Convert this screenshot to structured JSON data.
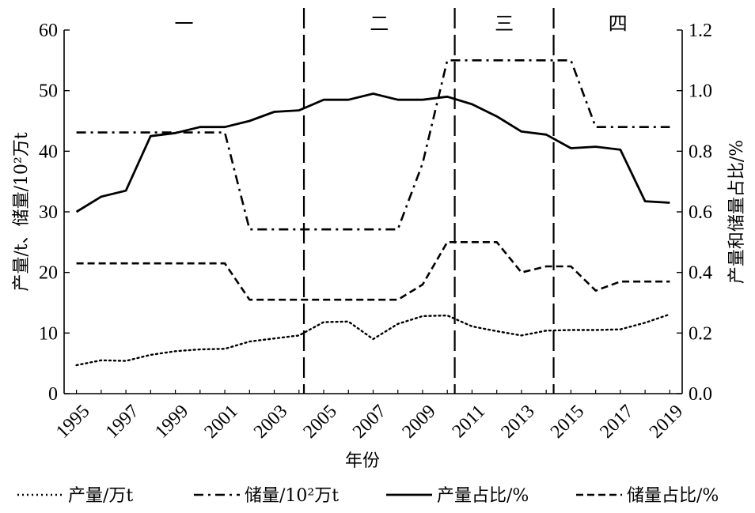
{
  "chart_data": {
    "type": "line",
    "xlabel": "年份",
    "ylabel_left": "产量/t、储量/10²万t",
    "ylabel_right": "产量和储量占比/%",
    "ylim_left": [
      0,
      60
    ],
    "ylim_right": [
      0.0,
      1.2
    ],
    "yticks_left": [
      "0",
      "10",
      "20",
      "30",
      "40",
      "50",
      "60"
    ],
    "yticks_right": [
      "0.0",
      "0.2",
      "0.4",
      "0.6",
      "0.8",
      "1.0",
      "1.2"
    ],
    "x": [
      1995,
      1996,
      1997,
      1998,
      1999,
      2000,
      2001,
      2002,
      2003,
      2004,
      2005,
      2006,
      2007,
      2008,
      2009,
      2010,
      2011,
      2012,
      2013,
      2014,
      2015,
      2016,
      2017,
      2018,
      2019
    ],
    "xtick_labels": [
      "1995",
      "1997",
      "1999",
      "2001",
      "2003",
      "2005",
      "2007",
      "2009",
      "2011",
      "2013",
      "2015",
      "2017",
      "2019"
    ],
    "xlim": [
      1994.5,
      2019.5
    ],
    "period_labels": [
      "一",
      "二",
      "三",
      "四"
    ],
    "period_bounds": [
      2004.2,
      2010.3,
      2014.3
    ],
    "series": [
      {
        "name": "产量/万t",
        "axis": "left",
        "style": "dotted",
        "values": [
          4.7,
          5.5,
          5.4,
          6.4,
          7.0,
          7.3,
          7.4,
          8.6,
          9.1,
          9.6,
          11.8,
          11.9,
          9.0,
          11.5,
          12.8,
          12.9,
          11.1,
          10.3,
          9.6,
          10.4,
          10.5,
          10.5,
          10.6,
          11.7,
          13.1
        ]
      },
      {
        "name": "储量/10²万t",
        "axis": "left",
        "style": "dashdot",
        "values": [
          43.1,
          43.1,
          43.1,
          43.1,
          43.1,
          43.1,
          43.1,
          27.1,
          27.1,
          27.1,
          27.1,
          27.1,
          27.1,
          27.1,
          38.0,
          55.0,
          55.0,
          55.0,
          55.0,
          55.0,
          55.0,
          44.0,
          44.0,
          44.0,
          44.0
        ]
      },
      {
        "name": "产量占比/%",
        "axis": "right",
        "style": "solid",
        "values": [
          0.6,
          0.65,
          0.67,
          0.85,
          0.86,
          0.88,
          0.88,
          0.9,
          0.93,
          0.935,
          0.97,
          0.97,
          0.99,
          0.97,
          0.97,
          0.98,
          0.955,
          0.915,
          0.865,
          0.855,
          0.81,
          0.815,
          0.805,
          0.635,
          0.63
        ]
      },
      {
        "name": "储量占比/%",
        "axis": "right",
        "style": "dashed",
        "values": [
          0.43,
          0.43,
          0.43,
          0.43,
          0.43,
          0.43,
          0.43,
          0.31,
          0.31,
          0.31,
          0.31,
          0.31,
          0.31,
          0.31,
          0.36,
          0.5,
          0.5,
          0.5,
          0.4,
          0.42,
          0.42,
          0.34,
          0.37,
          0.37,
          0.37
        ]
      }
    ],
    "legend": {
      "placement": "bottom",
      "items": [
        "产量/万t",
        "储量/10²万t",
        "产量占比/%",
        "储量占比/%"
      ]
    },
    "grid": false
  }
}
